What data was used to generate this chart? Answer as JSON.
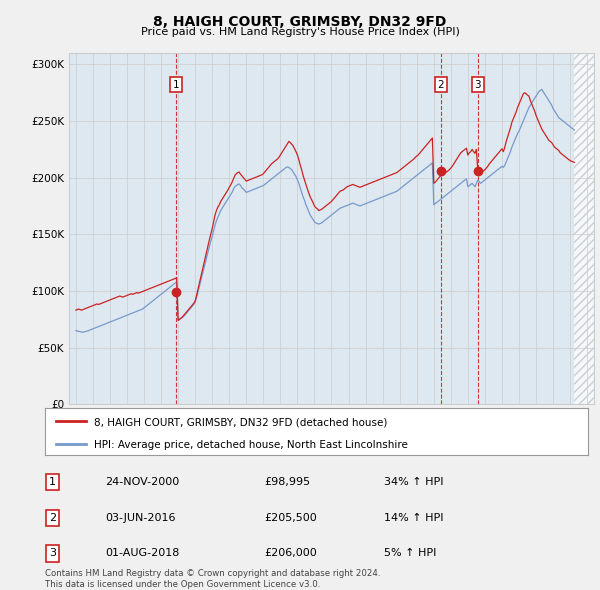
{
  "title": "8, HAIGH COURT, GRIMSBY, DN32 9FD",
  "subtitle": "Price paid vs. HM Land Registry's House Price Index (HPI)",
  "ylabel_ticks": [
    "£0",
    "£50K",
    "£100K",
    "£150K",
    "£200K",
    "£250K",
    "£300K"
  ],
  "ytick_vals": [
    0,
    50000,
    100000,
    150000,
    200000,
    250000,
    300000
  ],
  "ylim": [
    0,
    310000
  ],
  "xlim_start": 1994.6,
  "xlim_end": 2025.4,
  "line1_color": "#cc2222",
  "line2_color": "#7799cc",
  "transaction_color": "#cc2222",
  "vline_color": "#cc2222",
  "grid_color": "#cccccc",
  "background_color": "#f0f0f0",
  "plot_bg_color": "#dde8f0",
  "hatch_color": "#e8e8e8",
  "legend_label1": "8, HAIGH COURT, GRIMSBY, DN32 9FD (detached house)",
  "legend_label2": "HPI: Average price, detached house, North East Lincolnshire",
  "transactions": [
    {
      "label": "1",
      "year": 2000.9,
      "price": 98995
    },
    {
      "label": "2",
      "year": 2016.42,
      "price": 205500
    },
    {
      "label": "3",
      "year": 2018.58,
      "price": 206000
    }
  ],
  "table_rows": [
    {
      "num": "1",
      "date": "24-NOV-2000",
      "price": "£98,995",
      "change": "34% ↑ HPI"
    },
    {
      "num": "2",
      "date": "03-JUN-2016",
      "price": "£205,500",
      "change": "14% ↑ HPI"
    },
    {
      "num": "3",
      "date": "01-AUG-2018",
      "price": "£206,000",
      "change": "5% ↑ HPI"
    }
  ],
  "footer": "Contains HM Land Registry data © Crown copyright and database right 2024.\nThis data is licensed under the Open Government Licence v3.0.",
  "hatch_start": 2024.25,
  "hpi_years": [
    1995.0,
    1995.083,
    1995.167,
    1995.25,
    1995.333,
    1995.417,
    1995.5,
    1995.583,
    1995.667,
    1995.75,
    1995.833,
    1995.917,
    1996.0,
    1996.083,
    1996.167,
    1996.25,
    1996.333,
    1996.417,
    1996.5,
    1996.583,
    1996.667,
    1996.75,
    1996.833,
    1996.917,
    1997.0,
    1997.083,
    1997.167,
    1997.25,
    1997.333,
    1997.417,
    1997.5,
    1997.583,
    1997.667,
    1997.75,
    1997.833,
    1997.917,
    1998.0,
    1998.083,
    1998.167,
    1998.25,
    1998.333,
    1998.417,
    1998.5,
    1998.583,
    1998.667,
    1998.75,
    1998.833,
    1998.917,
    1999.0,
    1999.083,
    1999.167,
    1999.25,
    1999.333,
    1999.417,
    1999.5,
    1999.583,
    1999.667,
    1999.75,
    1999.833,
    1999.917,
    2000.0,
    2000.083,
    2000.167,
    2000.25,
    2000.333,
    2000.417,
    2000.5,
    2000.583,
    2000.667,
    2000.75,
    2000.833,
    2000.917,
    2001.0,
    2001.083,
    2001.167,
    2001.25,
    2001.333,
    2001.417,
    2001.5,
    2001.583,
    2001.667,
    2001.75,
    2001.833,
    2001.917,
    2002.0,
    2002.083,
    2002.167,
    2002.25,
    2002.333,
    2002.417,
    2002.5,
    2002.583,
    2002.667,
    2002.75,
    2002.833,
    2002.917,
    2003.0,
    2003.083,
    2003.167,
    2003.25,
    2003.333,
    2003.417,
    2003.5,
    2003.583,
    2003.667,
    2003.75,
    2003.833,
    2003.917,
    2004.0,
    2004.083,
    2004.167,
    2004.25,
    2004.333,
    2004.417,
    2004.5,
    2004.583,
    2004.667,
    2004.75,
    2004.833,
    2004.917,
    2005.0,
    2005.083,
    2005.167,
    2005.25,
    2005.333,
    2005.417,
    2005.5,
    2005.583,
    2005.667,
    2005.75,
    2005.833,
    2005.917,
    2006.0,
    2006.083,
    2006.167,
    2006.25,
    2006.333,
    2006.417,
    2006.5,
    2006.583,
    2006.667,
    2006.75,
    2006.833,
    2006.917,
    2007.0,
    2007.083,
    2007.167,
    2007.25,
    2007.333,
    2007.417,
    2007.5,
    2007.583,
    2007.667,
    2007.75,
    2007.833,
    2007.917,
    2008.0,
    2008.083,
    2008.167,
    2008.25,
    2008.333,
    2008.417,
    2008.5,
    2008.583,
    2008.667,
    2008.75,
    2008.833,
    2008.917,
    2009.0,
    2009.083,
    2009.167,
    2009.25,
    2009.333,
    2009.417,
    2009.5,
    2009.583,
    2009.667,
    2009.75,
    2009.833,
    2009.917,
    2010.0,
    2010.083,
    2010.167,
    2010.25,
    2010.333,
    2010.417,
    2010.5,
    2010.583,
    2010.667,
    2010.75,
    2010.833,
    2010.917,
    2011.0,
    2011.083,
    2011.167,
    2011.25,
    2011.333,
    2011.417,
    2011.5,
    2011.583,
    2011.667,
    2011.75,
    2011.833,
    2011.917,
    2012.0,
    2012.083,
    2012.167,
    2012.25,
    2012.333,
    2012.417,
    2012.5,
    2012.583,
    2012.667,
    2012.75,
    2012.833,
    2012.917,
    2013.0,
    2013.083,
    2013.167,
    2013.25,
    2013.333,
    2013.417,
    2013.5,
    2013.583,
    2013.667,
    2013.75,
    2013.833,
    2013.917,
    2014.0,
    2014.083,
    2014.167,
    2014.25,
    2014.333,
    2014.417,
    2014.5,
    2014.583,
    2014.667,
    2014.75,
    2014.833,
    2014.917,
    2015.0,
    2015.083,
    2015.167,
    2015.25,
    2015.333,
    2015.417,
    2015.5,
    2015.583,
    2015.667,
    2015.75,
    2015.833,
    2015.917,
    2016.0,
    2016.083,
    2016.167,
    2016.25,
    2016.333,
    2016.417,
    2016.5,
    2016.583,
    2016.667,
    2016.75,
    2016.833,
    2016.917,
    2017.0,
    2017.083,
    2017.167,
    2017.25,
    2017.333,
    2017.417,
    2017.5,
    2017.583,
    2017.667,
    2017.75,
    2017.833,
    2017.917,
    2018.0,
    2018.083,
    2018.167,
    2018.25,
    2018.333,
    2018.417,
    2018.5,
    2018.583,
    2018.667,
    2018.75,
    2018.833,
    2018.917,
    2019.0,
    2019.083,
    2019.167,
    2019.25,
    2019.333,
    2019.417,
    2019.5,
    2019.583,
    2019.667,
    2019.75,
    2019.833,
    2019.917,
    2020.0,
    2020.083,
    2020.167,
    2020.25,
    2020.333,
    2020.417,
    2020.5,
    2020.583,
    2020.667,
    2020.75,
    2020.833,
    2020.917,
    2021.0,
    2021.083,
    2021.167,
    2021.25,
    2021.333,
    2021.417,
    2021.5,
    2021.583,
    2021.667,
    2021.75,
    2021.833,
    2021.917,
    2022.0,
    2022.083,
    2022.167,
    2022.25,
    2022.333,
    2022.417,
    2022.5,
    2022.583,
    2022.667,
    2022.75,
    2022.833,
    2022.917,
    2023.0,
    2023.083,
    2023.167,
    2023.25,
    2023.333,
    2023.417,
    2023.5,
    2023.583,
    2023.667,
    2023.75,
    2023.833,
    2023.917,
    2024.0,
    2024.083,
    2024.167,
    2024.25
  ],
  "hpi_vals": [
    65000,
    64500,
    64200,
    64000,
    63800,
    63500,
    63800,
    64200,
    64500,
    65000,
    65500,
    66000,
    66500,
    67000,
    67500,
    68000,
    68500,
    69000,
    69500,
    70000,
    70500,
    71000,
    71500,
    72000,
    72500,
    73000,
    73500,
    74000,
    74500,
    75000,
    75500,
    76000,
    76500,
    77000,
    77500,
    78000,
    78500,
    79000,
    79500,
    80000,
    80500,
    81000,
    81500,
    82000,
    82500,
    83000,
    83500,
    84000,
    85000,
    86000,
    87000,
    88000,
    89000,
    90000,
    91000,
    92000,
    93000,
    94000,
    95000,
    96000,
    97000,
    98000,
    99000,
    100000,
    101000,
    102000,
    103000,
    104000,
    105000,
    106000,
    107000,
    108000,
    74000,
    74500,
    75500,
    76500,
    77500,
    79000,
    80500,
    82000,
    83500,
    85000,
    86500,
    88000,
    90000,
    94000,
    99000,
    104000,
    109000,
    114000,
    119000,
    124000,
    129000,
    134000,
    139000,
    144000,
    148000,
    153000,
    158000,
    162000,
    165000,
    168000,
    171000,
    173000,
    175000,
    177000,
    179000,
    181000,
    183000,
    185000,
    187000,
    190000,
    192000,
    193000,
    194000,
    194500,
    193000,
    191000,
    190000,
    188500,
    187000,
    187500,
    188000,
    188500,
    189000,
    189500,
    190000,
    190500,
    191000,
    191500,
    192000,
    192500,
    193000,
    194000,
    195000,
    196000,
    197000,
    198000,
    199000,
    200000,
    201000,
    202000,
    203000,
    204000,
    205000,
    206000,
    207000,
    208000,
    209000,
    209500,
    209000,
    208000,
    207000,
    205000,
    203000,
    201000,
    198000,
    195000,
    191000,
    187000,
    183000,
    180000,
    176000,
    173000,
    170000,
    167000,
    165000,
    163000,
    161000,
    160000,
    159500,
    159000,
    159500,
    160000,
    161000,
    162000,
    163000,
    164000,
    165000,
    166000,
    167000,
    168000,
    169000,
    170000,
    171000,
    172000,
    173000,
    173500,
    174000,
    174500,
    175000,
    175500,
    176000,
    176500,
    177000,
    177500,
    177000,
    176500,
    176000,
    175500,
    175000,
    175500,
    176000,
    176500,
    177000,
    177500,
    178000,
    178500,
    179000,
    179500,
    180000,
    180500,
    181000,
    181500,
    182000,
    182500,
    183000,
    183500,
    184000,
    184500,
    185000,
    185500,
    186000,
    186500,
    187000,
    187500,
    188000,
    189000,
    190000,
    191000,
    192000,
    193000,
    194000,
    195000,
    196000,
    197000,
    198000,
    199000,
    200000,
    201000,
    202000,
    203000,
    204000,
    205000,
    206000,
    207000,
    208000,
    209000,
    210000,
    211000,
    212000,
    213000,
    176000,
    177000,
    178000,
    179000,
    180000,
    181000,
    182000,
    183000,
    184000,
    185000,
    186000,
    187000,
    188000,
    189000,
    190000,
    191000,
    192000,
    193000,
    194000,
    195000,
    196000,
    197000,
    198000,
    199000,
    192000,
    193000,
    194000,
    195000,
    193500,
    192000,
    195000,
    198000,
    196500,
    195000,
    196000,
    197000,
    198000,
    199000,
    200000,
    201000,
    202000,
    203000,
    204000,
    205000,
    206000,
    207000,
    208000,
    209000,
    210000,
    209000,
    211000,
    214000,
    217000,
    220000,
    223000,
    227000,
    230000,
    233000,
    236000,
    239000,
    241000,
    244000,
    247000,
    250000,
    253000,
    256000,
    259000,
    262000,
    264000,
    266000,
    268000,
    270000,
    272000,
    274000,
    276000,
    277000,
    278000,
    276000,
    274000,
    272000,
    270000,
    268000,
    266000,
    264000,
    261000,
    259000,
    257000,
    255000,
    253000,
    252000,
    251000,
    250000,
    249000,
    248000,
    247000,
    246000,
    245000,
    244000,
    243000,
    242000
  ],
  "price_years": [
    1995.0,
    1995.083,
    1995.167,
    1995.25,
    1995.333,
    1995.417,
    1995.5,
    1995.583,
    1995.667,
    1995.75,
    1995.833,
    1995.917,
    1996.0,
    1996.083,
    1996.167,
    1996.25,
    1996.333,
    1996.417,
    1996.5,
    1996.583,
    1996.667,
    1996.75,
    1996.833,
    1996.917,
    1997.0,
    1997.083,
    1997.167,
    1997.25,
    1997.333,
    1997.417,
    1997.5,
    1997.583,
    1997.667,
    1997.75,
    1997.833,
    1997.917,
    1998.0,
    1998.083,
    1998.167,
    1998.25,
    1998.333,
    1998.417,
    1998.5,
    1998.583,
    1998.667,
    1998.75,
    1998.833,
    1998.917,
    1999.0,
    1999.083,
    1999.167,
    1999.25,
    1999.333,
    1999.417,
    1999.5,
    1999.583,
    1999.667,
    1999.75,
    1999.833,
    1999.917,
    2000.0,
    2000.083,
    2000.167,
    2000.25,
    2000.333,
    2000.417,
    2000.5,
    2000.583,
    2000.667,
    2000.75,
    2000.833,
    2000.917,
    2001.0,
    2001.083,
    2001.167,
    2001.25,
    2001.333,
    2001.417,
    2001.5,
    2001.583,
    2001.667,
    2001.75,
    2001.833,
    2001.917,
    2002.0,
    2002.083,
    2002.167,
    2002.25,
    2002.333,
    2002.417,
    2002.5,
    2002.583,
    2002.667,
    2002.75,
    2002.833,
    2002.917,
    2003.0,
    2003.083,
    2003.167,
    2003.25,
    2003.333,
    2003.417,
    2003.5,
    2003.583,
    2003.667,
    2003.75,
    2003.833,
    2003.917,
    2004.0,
    2004.083,
    2004.167,
    2004.25,
    2004.333,
    2004.417,
    2004.5,
    2004.583,
    2004.667,
    2004.75,
    2004.833,
    2004.917,
    2005.0,
    2005.083,
    2005.167,
    2005.25,
    2005.333,
    2005.417,
    2005.5,
    2005.583,
    2005.667,
    2005.75,
    2005.833,
    2005.917,
    2006.0,
    2006.083,
    2006.167,
    2006.25,
    2006.333,
    2006.417,
    2006.5,
    2006.583,
    2006.667,
    2006.75,
    2006.833,
    2006.917,
    2007.0,
    2007.083,
    2007.167,
    2007.25,
    2007.333,
    2007.417,
    2007.5,
    2007.583,
    2007.667,
    2007.75,
    2007.833,
    2007.917,
    2008.0,
    2008.083,
    2008.167,
    2008.25,
    2008.333,
    2008.417,
    2008.5,
    2008.583,
    2008.667,
    2008.75,
    2008.833,
    2008.917,
    2009.0,
    2009.083,
    2009.167,
    2009.25,
    2009.333,
    2009.417,
    2009.5,
    2009.583,
    2009.667,
    2009.75,
    2009.833,
    2009.917,
    2010.0,
    2010.083,
    2010.167,
    2010.25,
    2010.333,
    2010.417,
    2010.5,
    2010.583,
    2010.667,
    2010.75,
    2010.833,
    2010.917,
    2011.0,
    2011.083,
    2011.167,
    2011.25,
    2011.333,
    2011.417,
    2011.5,
    2011.583,
    2011.667,
    2011.75,
    2011.833,
    2011.917,
    2012.0,
    2012.083,
    2012.167,
    2012.25,
    2012.333,
    2012.417,
    2012.5,
    2012.583,
    2012.667,
    2012.75,
    2012.833,
    2012.917,
    2013.0,
    2013.083,
    2013.167,
    2013.25,
    2013.333,
    2013.417,
    2013.5,
    2013.583,
    2013.667,
    2013.75,
    2013.833,
    2013.917,
    2014.0,
    2014.083,
    2014.167,
    2014.25,
    2014.333,
    2014.417,
    2014.5,
    2014.583,
    2014.667,
    2014.75,
    2014.833,
    2014.917,
    2015.0,
    2015.083,
    2015.167,
    2015.25,
    2015.333,
    2015.417,
    2015.5,
    2015.583,
    2015.667,
    2015.75,
    2015.833,
    2015.917,
    2016.0,
    2016.083,
    2016.167,
    2016.25,
    2016.333,
    2016.417,
    2016.5,
    2016.583,
    2016.667,
    2016.75,
    2016.833,
    2016.917,
    2017.0,
    2017.083,
    2017.167,
    2017.25,
    2017.333,
    2017.417,
    2017.5,
    2017.583,
    2017.667,
    2017.75,
    2017.833,
    2017.917,
    2018.0,
    2018.083,
    2018.167,
    2018.25,
    2018.333,
    2018.417,
    2018.5,
    2018.583,
    2018.667,
    2018.75,
    2018.833,
    2018.917,
    2019.0,
    2019.083,
    2019.167,
    2019.25,
    2019.333,
    2019.417,
    2019.5,
    2019.583,
    2019.667,
    2019.75,
    2019.833,
    2019.917,
    2020.0,
    2020.083,
    2020.167,
    2020.25,
    2020.333,
    2020.417,
    2020.5,
    2020.583,
    2020.667,
    2020.75,
    2020.833,
    2020.917,
    2021.0,
    2021.083,
    2021.167,
    2021.25,
    2021.333,
    2021.417,
    2021.5,
    2021.583,
    2021.667,
    2021.75,
    2021.833,
    2021.917,
    2022.0,
    2022.083,
    2022.167,
    2022.25,
    2022.333,
    2022.417,
    2022.5,
    2022.583,
    2022.667,
    2022.75,
    2022.833,
    2022.917,
    2023.0,
    2023.083,
    2023.167,
    2023.25,
    2023.333,
    2023.417,
    2023.5,
    2023.583,
    2023.667,
    2023.75,
    2023.833,
    2023.917,
    2024.0,
    2024.083,
    2024.167,
    2024.25
  ],
  "price_vals": [
    83000,
    83500,
    84000,
    83500,
    83000,
    83500,
    84000,
    84500,
    85000,
    85500,
    86000,
    86500,
    87000,
    87500,
    88000,
    88500,
    88000,
    88500,
    89000,
    89500,
    90000,
    90500,
    91000,
    91500,
    92000,
    92500,
    93000,
    93500,
    94000,
    94500,
    95000,
    95500,
    95000,
    94500,
    95000,
    95500,
    96000,
    96500,
    97000,
    97500,
    97000,
    97500,
    98000,
    98500,
    98000,
    98500,
    99000,
    99500,
    100000,
    100500,
    101000,
    101500,
    102000,
    102500,
    103000,
    103500,
    104000,
    104500,
    105000,
    105500,
    106000,
    106500,
    107000,
    107500,
    108000,
    108500,
    109000,
    109500,
    110000,
    110500,
    111000,
    111500,
    74000,
    75000,
    76000,
    77000,
    78500,
    80000,
    81500,
    83000,
    84500,
    86000,
    87500,
    89000,
    91000,
    96000,
    101500,
    107000,
    112000,
    117500,
    123000,
    128500,
    134000,
    140000,
    145000,
    150000,
    155000,
    161000,
    167000,
    171000,
    174000,
    176000,
    179000,
    181000,
    183000,
    185000,
    187000,
    189000,
    191500,
    193500,
    196000,
    199000,
    202000,
    203500,
    204500,
    205000,
    203000,
    201500,
    200000,
    198500,
    197000,
    197500,
    198000,
    198500,
    199000,
    199500,
    200000,
    200500,
    201000,
    201500,
    202000,
    202500,
    203500,
    205000,
    206500,
    208000,
    209500,
    211000,
    212500,
    213500,
    214500,
    215500,
    216500,
    218000,
    220000,
    222000,
    224000,
    226000,
    228000,
    230000,
    232000,
    231000,
    229500,
    228000,
    225500,
    223000,
    220000,
    216000,
    211000,
    207000,
    202000,
    198000,
    194000,
    190000,
    186500,
    183000,
    180500,
    178000,
    175000,
    173500,
    172500,
    171000,
    171500,
    172000,
    173000,
    174000,
    175000,
    176000,
    177000,
    178000,
    179000,
    180500,
    182000,
    183500,
    185000,
    186500,
    188000,
    188500,
    189000,
    190000,
    191000,
    192000,
    192500,
    193000,
    193500,
    194000,
    193500,
    193000,
    192500,
    192000,
    191500,
    192000,
    192500,
    193000,
    193500,
    194000,
    194500,
    195000,
    195500,
    196000,
    196500,
    197000,
    197500,
    198000,
    198500,
    199000,
    199500,
    200000,
    200500,
    201000,
    201500,
    202000,
    202500,
    203000,
    203500,
    204000,
    204500,
    205500,
    206500,
    207500,
    208500,
    209500,
    210500,
    211500,
    212500,
    213500,
    214500,
    215500,
    216500,
    218000,
    219000,
    220000,
    221500,
    223000,
    224500,
    226000,
    227500,
    229000,
    230500,
    232000,
    233500,
    235000,
    195000,
    196000,
    197500,
    199000,
    200500,
    202000,
    205500,
    207000,
    206000,
    205000,
    206000,
    207000,
    208500,
    210000,
    212000,
    214000,
    216000,
    218000,
    220000,
    222000,
    223000,
    224000,
    225000,
    226000,
    220000,
    222000,
    223000,
    225000,
    223000,
    221500,
    225000,
    206000,
    205000,
    204000,
    205000,
    206000,
    207000,
    208500,
    210000,
    212000,
    213500,
    215000,
    216500,
    218000,
    219500,
    221000,
    222500,
    224000,
    225500,
    223000,
    227000,
    232000,
    236000,
    240000,
    244000,
    249000,
    252000,
    255000,
    258000,
    262000,
    265000,
    268000,
    271000,
    274000,
    275000,
    274000,
    273000,
    272000,
    268000,
    265000,
    262000,
    259000,
    255000,
    252000,
    249000,
    246000,
    243000,
    241000,
    239000,
    237000,
    235000,
    233000,
    232000,
    231000,
    229000,
    227000,
    226000,
    225000,
    224000,
    222000,
    221000,
    220000,
    219000,
    218000,
    217000,
    216000,
    215000,
    214500,
    214000,
    213500
  ]
}
